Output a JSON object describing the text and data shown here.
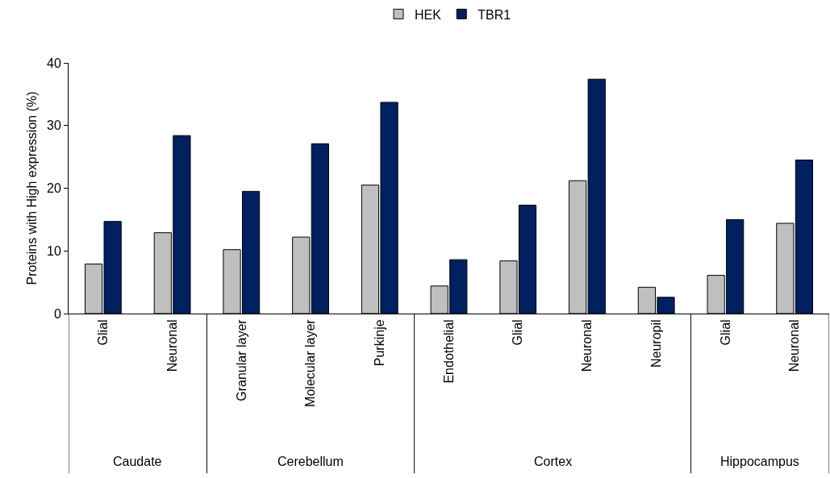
{
  "chart_data": {
    "type": "bar",
    "ylabel": "Proteins with High expression (%)",
    "categories": [
      "Glial",
      "Neuronal",
      "Granular layer",
      "Molecular layer",
      "Purkinje",
      "Endothelial",
      "Glial",
      "Neuronal",
      "Neuropil",
      "Glial",
      "Neuronal"
    ],
    "series": [
      {
        "name": "HEK",
        "color": "#bfbfbf",
        "values": [
          7.9,
          12.9,
          10.2,
          12.2,
          20.5,
          4.4,
          8.4,
          21.2,
          4.2,
          6.1,
          14.4
        ]
      },
      {
        "name": "TBR1",
        "color": "#002060",
        "values": [
          14.7,
          28.4,
          19.5,
          27.1,
          33.7,
          8.6,
          17.3,
          37.4,
          2.6,
          15.0,
          24.5
        ]
      }
    ],
    "annotations": [
      "Caudate",
      "Cerebellum",
      "Cortex",
      "Hippocampus"
    ],
    "ylim": [
      0,
      40
    ],
    "yticks": [
      0,
      10,
      20,
      30,
      40
    ],
    "grid": false,
    "legend": "top"
  }
}
